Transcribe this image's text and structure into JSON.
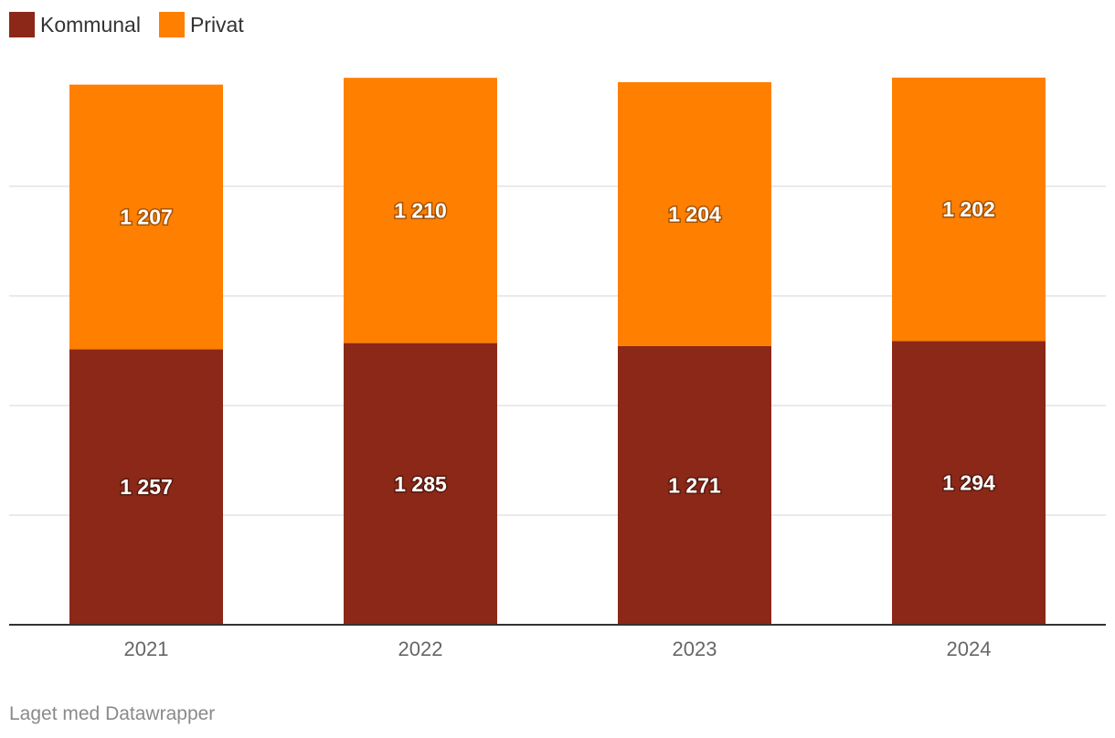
{
  "chart_data": {
    "type": "bar",
    "stacked": true,
    "categories": [
      "2021",
      "2022",
      "2023",
      "2024"
    ],
    "series": [
      {
        "name": "Kommunal",
        "color": "#8B2818",
        "values": [
          1257,
          1285,
          1271,
          1294
        ],
        "labels": [
          "1 257",
          "1 285",
          "1 271",
          "1 294"
        ]
      },
      {
        "name": "Privat",
        "color": "#FF7F00",
        "values": [
          1207,
          1210,
          1204,
          1202
        ],
        "labels": [
          "1 207",
          "1 210",
          "1 204",
          "1 202"
        ]
      }
    ],
    "ylim": [
      0,
      2500
    ],
    "grid": true,
    "legend_position": "top-left"
  },
  "credit": "Laget med Datawrapper"
}
